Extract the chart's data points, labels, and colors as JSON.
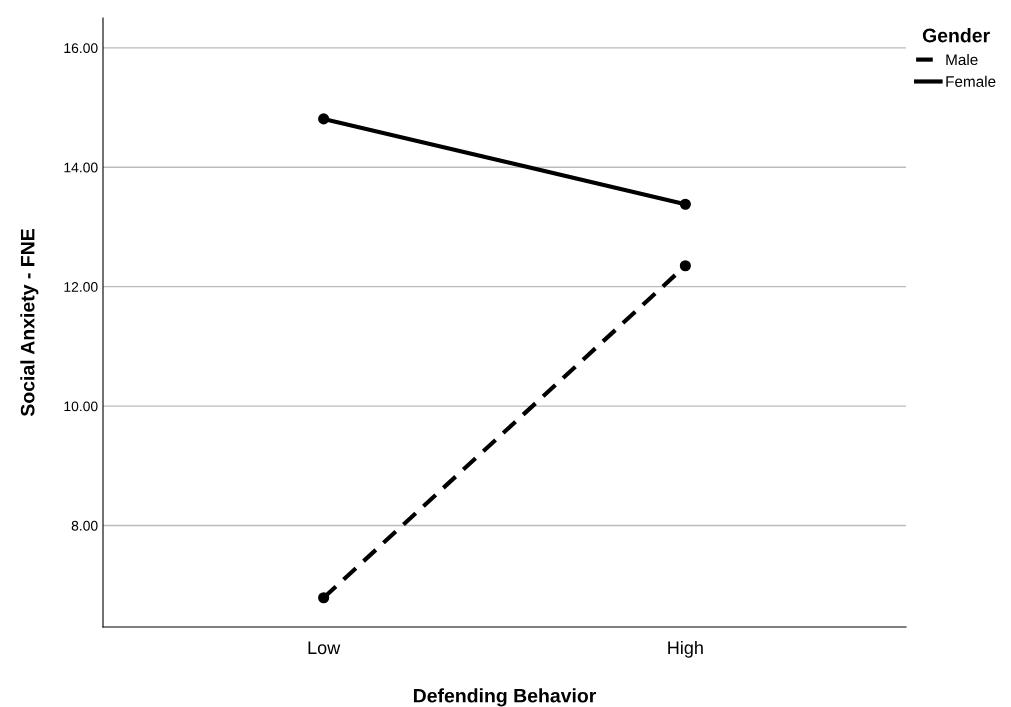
{
  "chart_data": {
    "type": "line",
    "xlabel": "Defending Behavior",
    "ylabel": "Social Anxiety - FNE",
    "categories": [
      "Low",
      "High"
    ],
    "series": [
      {
        "name": "Male",
        "color": "#000000",
        "line_style": "dashed",
        "values": [
          6.79,
          12.35
        ]
      },
      {
        "name": "Female",
        "color": "#000000",
        "line_style": "solid",
        "values": [
          14.81,
          13.38
        ]
      }
    ],
    "ylim": [
      6.3,
      16.5
    ],
    "yticks": [
      {
        "value": 8,
        "label": "8.00"
      },
      {
        "value": 10,
        "label": "10.00"
      },
      {
        "value": 12,
        "label": "12.00"
      },
      {
        "value": 14,
        "label": "14.00"
      },
      {
        "value": 16,
        "label": "16.00"
      }
    ],
    "grid": "y",
    "marker": "circle",
    "legend": "top right",
    "legend_title": "Gender"
  }
}
